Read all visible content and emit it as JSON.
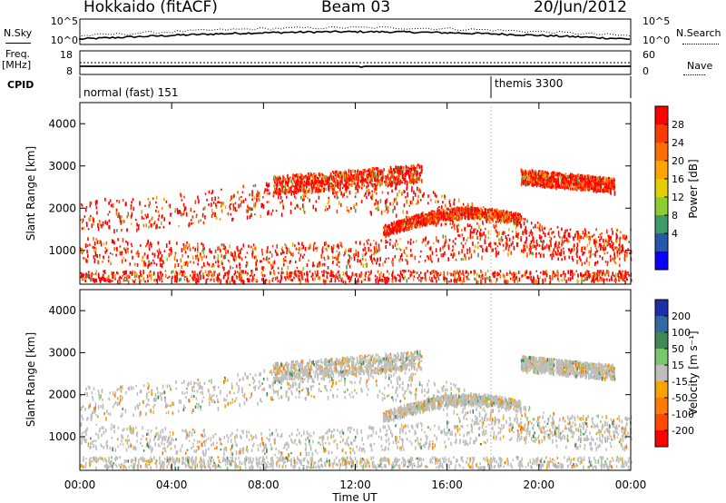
{
  "header": {
    "station": "Hokkaido (fitACF)",
    "beam": "Beam 03",
    "date": "20/Jun/2012"
  },
  "strip": {
    "nsky_label": "N.Sky",
    "nsky_ticks": [
      "10^5",
      "10^0"
    ],
    "nsearch_label": "N.Search",
    "freq_label_1": "Freq.",
    "freq_label_2": "[MHz]",
    "freq_ticks": [
      "18",
      "8"
    ],
    "nave_ticks": [
      "60",
      "0"
    ],
    "nave_label": "Nave",
    "cpid_label": "CPID",
    "cpid_1": "normal (fast) 151",
    "cpid_2": "themis 3300"
  },
  "chart_data": [
    {
      "type": "heatmap",
      "name": "power-panel",
      "ylabel": "Slant Range [km]",
      "xlabel": "",
      "y_ticks": [
        "1000",
        "2000",
        "3000",
        "4000"
      ],
      "ylim": [
        200,
        4500
      ],
      "x_ticks": [],
      "colorbar_label": "Power [dB]",
      "colorbar_ticks": [
        "28",
        "24",
        "20",
        "16",
        "12",
        "8",
        "4"
      ],
      "colorbar_colors": [
        "#ff0000",
        "#ff3a00",
        "#ff6e00",
        "#ffa400",
        "#e3cf00",
        "#8fcc2f",
        "#3f9a6a",
        "#2458a8",
        "#0b00ff"
      ]
    },
    {
      "type": "heatmap",
      "name": "velocity-panel",
      "ylabel": "Slant Range [km]",
      "xlabel": "Time UT",
      "y_ticks": [
        "1000",
        "2000",
        "3000",
        "4000"
      ],
      "ylim": [
        200,
        4500
      ],
      "x_ticks": [
        "00:00",
        "04:00",
        "08:00",
        "12:00",
        "16:00",
        "20:00",
        "00:00"
      ],
      "colorbar_label": "Velocity [m s⁻¹]",
      "colorbar_ticks": [
        "200",
        "100",
        "50",
        "15",
        "-15",
        "-50",
        "-100",
        "-200"
      ],
      "colorbar_colors": [
        "#1a2fa8",
        "#2f6aa4",
        "#3e8a52",
        "#78c86a",
        "#bebebe",
        "#f5a400",
        "#ff7a00",
        "#ff4800",
        "#ff0000"
      ]
    }
  ]
}
